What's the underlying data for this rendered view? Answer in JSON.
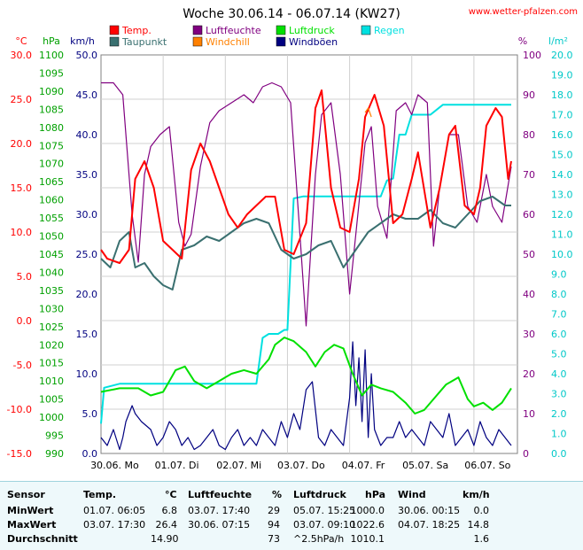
{
  "site": "www.wetter-pfalzen.com",
  "chart_data": {
    "type": "line",
    "title": "Woche 30.06.14 - 06.07.14 (KW27)",
    "legend": [
      {
        "name": "Temp.",
        "color": "#ff0000"
      },
      {
        "name": "Taupunkt",
        "color": "#3a7070"
      },
      {
        "name": "Luftfeuchte",
        "color": "#800080"
      },
      {
        "name": "Windchill",
        "color": "#ff8000"
      },
      {
        "name": "Luftdruck",
        "color": "#00e000"
      },
      {
        "name": "Windböen",
        "color": "#000080"
      },
      {
        "name": "Regen",
        "color": "#00e0e0"
      }
    ],
    "x_ticks": [
      "30.06. Mo",
      "01.07. Di",
      "02.07. Mi",
      "03.07. Do",
      "04.07. Fr",
      "05.07. Sa",
      "06.07. So"
    ],
    "axes": {
      "celsius": {
        "unit": "°C",
        "color": "#ff0000",
        "ticks": [
          "30.0",
          "25.0",
          "20.0",
          "15.0",
          "10.0",
          "5.0",
          "0.0",
          "-5.0",
          "-10.0",
          "-15.0"
        ],
        "range": [
          -15,
          30
        ]
      },
      "hpa": {
        "unit": "hPa",
        "color": "#00a000",
        "ticks": [
          "1100",
          "1095",
          "1090",
          "1085",
          "1080",
          "1075",
          "1070",
          "1065",
          "1060",
          "1055",
          "1050",
          "1045",
          "1040",
          "1035",
          "1030",
          "1025",
          "1020",
          "1015",
          "1010",
          "1005",
          "1000",
          "995",
          "990"
        ],
        "range": [
          990,
          1100
        ]
      },
      "kmh": {
        "unit": "km/h",
        "color": "#000080",
        "ticks": [
          "50.0",
          "45.0",
          "40.0",
          "35.0",
          "30.0",
          "25.0",
          "20.0",
          "15.0",
          "10.0",
          "5.0",
          "0.0"
        ],
        "range": [
          0,
          50
        ]
      },
      "percent": {
        "unit": "%",
        "color": "#800080",
        "ticks": [
          "100",
          "90",
          "80",
          "70",
          "60",
          "50",
          "40",
          "30",
          "20",
          "10",
          "0"
        ],
        "range": [
          0,
          100
        ]
      },
      "rain": {
        "unit": "l/m²",
        "color": "#00c8c8",
        "ticks": [
          "20.0",
          "19.0",
          "18.0",
          "17.0",
          "16.0",
          "15.0",
          "14.0",
          "13.0",
          "12.0",
          "11.0",
          "10.0",
          "9.0",
          "8.0",
          "7.0",
          "6.0",
          "5.0",
          "4.0",
          "3.0",
          "2.0",
          "1.0",
          "0.0"
        ],
        "range": [
          0,
          20
        ]
      }
    },
    "grid": true,
    "series": [
      {
        "name": "Temp.",
        "axis": "celsius",
        "x": [
          0,
          0.1,
          0.3,
          0.45,
          0.55,
          0.7,
          0.85,
          1.0,
          1.15,
          1.3,
          1.45,
          1.6,
          1.75,
          1.9,
          2.05,
          2.2,
          2.35,
          2.5,
          2.65,
          2.8,
          2.95,
          3.1,
          3.3,
          3.45,
          3.55,
          3.7,
          3.85,
          4.0,
          4.15,
          4.25,
          4.4,
          4.55,
          4.7,
          4.85,
          5.0,
          5.1,
          5.3,
          5.45,
          5.6,
          5.7,
          5.85,
          6.0,
          6.1,
          6.2,
          6.35,
          6.45,
          6.55,
          6.6
        ],
        "values": [
          8,
          7,
          6.5,
          8,
          16,
          18,
          15,
          9,
          8,
          7,
          17,
          20,
          18,
          15,
          12,
          10.5,
          12,
          13,
          14,
          14,
          8,
          7.5,
          11,
          24,
          26,
          15,
          10.5,
          10,
          16,
          23,
          25.5,
          22,
          11,
          12,
          16,
          19,
          10.5,
          15,
          21,
          22,
          13,
          12,
          15,
          22,
          24,
          23,
          16,
          18
        ]
      },
      {
        "name": "Taupunkt",
        "axis": "celsius",
        "x": [
          0,
          0.15,
          0.3,
          0.45,
          0.55,
          0.7,
          0.85,
          1.0,
          1.15,
          1.3,
          1.5,
          1.7,
          1.9,
          2.1,
          2.3,
          2.5,
          2.7,
          2.9,
          3.1,
          3.3,
          3.5,
          3.7,
          3.9,
          4.1,
          4.3,
          4.5,
          4.7,
          4.9,
          5.1,
          5.3,
          5.5,
          5.7,
          5.9,
          6.1,
          6.3,
          6.5,
          6.6
        ],
        "values": [
          7,
          6,
          9,
          10,
          6,
          6.5,
          5,
          4,
          3.5,
          8,
          8.5,
          9.5,
          9,
          10,
          11,
          11.5,
          11,
          8,
          7,
          7.5,
          8.5,
          9,
          6,
          8,
          10,
          11,
          12,
          11.5,
          11.5,
          12.5,
          11,
          10.5,
          12,
          13.5,
          14,
          13,
          13
        ]
      },
      {
        "name": "Luftfeuchte",
        "axis": "percent",
        "x": [
          0,
          0.2,
          0.35,
          0.5,
          0.6,
          0.7,
          0.8,
          0.95,
          1.1,
          1.25,
          1.35,
          1.45,
          1.6,
          1.75,
          1.9,
          2.1,
          2.3,
          2.45,
          2.6,
          2.75,
          2.9,
          3.05,
          3.2,
          3.3,
          3.45,
          3.55,
          3.7,
          3.85,
          4.0,
          4.1,
          4.25,
          4.35,
          4.45,
          4.6,
          4.75,
          4.9,
          5.0,
          5.1,
          5.25,
          5.35,
          5.45,
          5.6,
          5.75,
          5.9,
          6.05,
          6.2,
          6.3,
          6.45,
          6.6
        ],
        "values": [
          93,
          93,
          90,
          60,
          48,
          70,
          77,
          80,
          82,
          58,
          52,
          55,
          72,
          83,
          86,
          88,
          90,
          88,
          92,
          93,
          92,
          88,
          55,
          32,
          70,
          85,
          88,
          70,
          40,
          55,
          78,
          82,
          62,
          54,
          86,
          88,
          85,
          90,
          88,
          52,
          67,
          80,
          80,
          62,
          58,
          70,
          62,
          58,
          72
        ]
      },
      {
        "name": "Windchill",
        "axis": "celsius",
        "x": [
          4.25,
          4.3,
          4.35
        ],
        "values": [
          23.5,
          24,
          23
        ]
      },
      {
        "name": "Luftdruck",
        "axis": "hpa",
        "x": [
          0,
          0.3,
          0.6,
          0.8,
          1.0,
          1.1,
          1.2,
          1.35,
          1.5,
          1.7,
          1.9,
          2.1,
          2.3,
          2.5,
          2.7,
          2.8,
          2.95,
          3.1,
          3.3,
          3.45,
          3.6,
          3.75,
          3.9,
          4.05,
          4.2,
          4.35,
          4.5,
          4.7,
          4.9,
          5.05,
          5.2,
          5.35,
          5.55,
          5.75,
          5.9,
          6.0,
          6.15,
          6.3,
          6.45,
          6.6
        ],
        "values": [
          1007,
          1008,
          1008,
          1006,
          1007,
          1010,
          1013,
          1014,
          1010,
          1008,
          1010,
          1012,
          1013,
          1012,
          1016,
          1020,
          1022,
          1021,
          1018,
          1014,
          1018,
          1020,
          1019,
          1012,
          1006,
          1009,
          1008,
          1007,
          1004,
          1001,
          1002,
          1005,
          1009,
          1011,
          1005,
          1003,
          1004,
          1002,
          1004,
          1008
        ]
      },
      {
        "name": "Windböen",
        "axis": "kmh",
        "x": [
          0,
          0.1,
          0.2,
          0.3,
          0.35,
          0.4,
          0.5,
          0.55,
          0.65,
          0.8,
          0.9,
          1.0,
          1.1,
          1.2,
          1.3,
          1.4,
          1.5,
          1.6,
          1.7,
          1.8,
          1.9,
          2.0,
          2.1,
          2.2,
          2.3,
          2.4,
          2.5,
          2.6,
          2.7,
          2.8,
          2.9,
          3.0,
          3.1,
          3.2,
          3.3,
          3.4,
          3.5,
          3.6,
          3.7,
          3.8,
          3.9,
          4.0,
          4.05,
          4.1,
          4.15,
          4.2,
          4.25,
          4.3,
          4.35,
          4.4,
          4.5,
          4.6,
          4.7,
          4.8,
          4.9,
          5.0,
          5.1,
          5.2,
          5.3,
          5.4,
          5.5,
          5.6,
          5.7,
          5.8,
          5.9,
          6.0,
          6.1,
          6.2,
          6.3,
          6.4,
          6.5,
          6.6
        ],
        "values": [
          2,
          1,
          3,
          0.5,
          2,
          4,
          6,
          5,
          4,
          3,
          1,
          2,
          4,
          3,
          1,
          2,
          0.5,
          1,
          2,
          3,
          1,
          0.5,
          2,
          3,
          1,
          2,
          1,
          3,
          2,
          1,
          4,
          2,
          5,
          3,
          8,
          9,
          2,
          1,
          3,
          2,
          1,
          7,
          14,
          6,
          12,
          4,
          13,
          2,
          10,
          3,
          1,
          2,
          2,
          4,
          2,
          3,
          2,
          1,
          4,
          3,
          2,
          5,
          1,
          2,
          3,
          1,
          4,
          2,
          1,
          3,
          2,
          1
        ]
      },
      {
        "name": "Regen",
        "axis": "rain",
        "x": [
          0,
          0.05,
          0.3,
          0.6,
          0.9,
          1.2,
          1.5,
          1.8,
          2.0,
          2.1,
          2.3,
          2.5,
          2.6,
          2.7,
          2.8,
          2.85,
          2.95,
          3.0,
          3.1,
          3.25,
          3.5,
          3.8,
          4.1,
          4.3,
          4.45,
          4.5,
          4.55,
          4.6,
          4.7,
          4.8,
          4.9,
          5.0,
          5.1,
          5.2,
          5.3,
          5.5,
          5.8,
          6.1,
          6.4,
          6.6
        ],
        "values": [
          1.5,
          3.3,
          3.5,
          3.5,
          3.5,
          3.5,
          3.5,
          3.5,
          3.5,
          3.5,
          3.5,
          3.5,
          5.8,
          6,
          6,
          6,
          6.2,
          6.2,
          12.8,
          12.9,
          12.9,
          12.9,
          12.9,
          12.9,
          12.9,
          12.9,
          13.3,
          13.7,
          13.8,
          16.0,
          16.0,
          17.0,
          17.0,
          17.0,
          17.0,
          17.5,
          17.5,
          17.5,
          17.5,
          17.5
        ]
      }
    ]
  },
  "table": {
    "headers": {
      "sensor": "Sensor",
      "temp": "Temp.",
      "temp_unit": "°C",
      "hum": "Luftfeuchte",
      "hum_unit": "%",
      "press": "Luftdruck",
      "press_unit": "hPa",
      "wind": "Wind",
      "wind_unit": "km/h"
    },
    "rows": [
      {
        "label": "MinWert",
        "t_time": "01.07.  06:05",
        "t_val": "6.8",
        "h_time": "03.07.  17:40",
        "h_val": "29",
        "p_time": "05.07.  15:25",
        "p_val": "1000.0",
        "w_time": "30.06.  00:15",
        "w_val": "0.0"
      },
      {
        "label": "MaxWert",
        "t_time": "03.07.  17:30",
        "t_val": "26.4",
        "h_time": "30.06.  07:15",
        "h_val": "94",
        "p_time": "03.07.  09:10",
        "p_val": "1022.6",
        "w_time": "04.07.  18:25",
        "w_val": "14.8"
      },
      {
        "label": "Durchschnitt",
        "t_time": "",
        "t_val": "14.90",
        "h_time": "",
        "h_val": "73",
        "p_time": "^2.5hPa/h",
        "p_val": "1010.1",
        "w_time": "",
        "w_val": "1.6"
      }
    ]
  }
}
